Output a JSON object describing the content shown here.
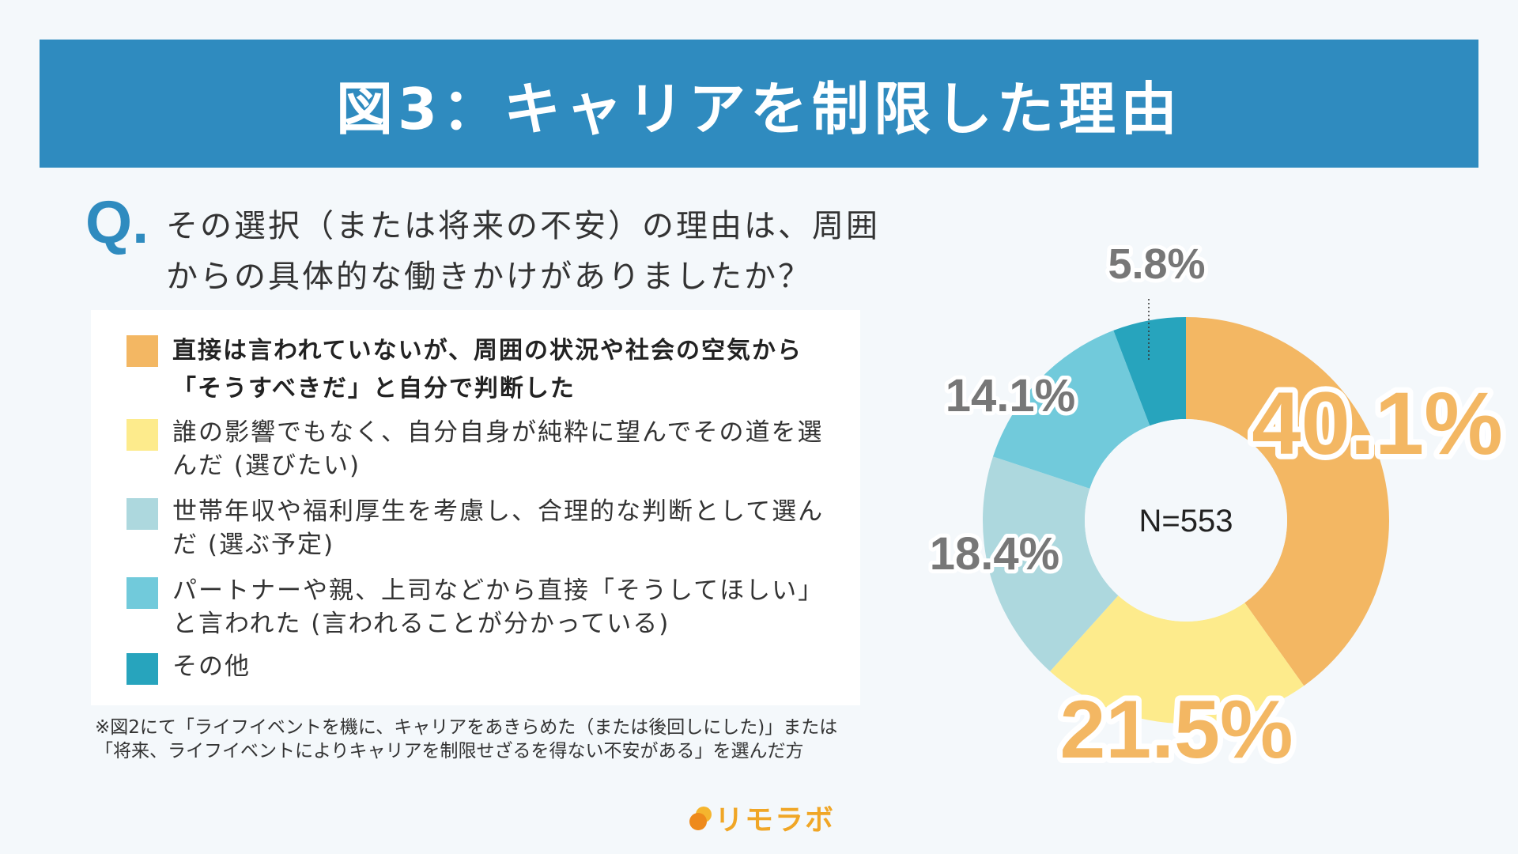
{
  "title": "図3：キャリアを制限した理由",
  "question": {
    "mark": "Q.",
    "line1": "その選択（または将来の不安）の理由は、周囲",
    "line2": "からの具体的な働きかけがありましたか？"
  },
  "legend": [
    {
      "label": "直接は言われていないが、周囲の状況や社会の空気から「そうすべきだ」と自分で判断した",
      "color": "#f3b763"
    },
    {
      "label": "誰の影響でもなく、自分自身が純粋に望んでその道を選んだ (選びたい)",
      "color": "#fdeb8c"
    },
    {
      "label": "世帯年収や福利厚生を考慮し、合理的な判断として選んだ (選ぶ予定)",
      "color": "#add8de"
    },
    {
      "label": "パートナーや親、上司などから直接「そうしてほしい」と言われた (言われることが分かっている)",
      "color": "#71cadb"
    },
    {
      "label": "その他",
      "color": "#27a4bd"
    }
  ],
  "note": "※図2にて「ライフイベントを機に、キャリアをあきらめた（または後回しにした)」または「将来、ライフイベントによりキャリアを制限せざるを得ない不安がある」を選んだ方",
  "logo": "リモラボ",
  "chart_data": {
    "type": "pie",
    "donut": true,
    "center_label": "N=553",
    "categories": [
      "直接は言われていないが、周囲の状況や社会の空気から「そうすべきだ」と自分で判断した",
      "誰の影響でもなく、自分自身が純粋に望んでその道を選んだ (選びたい)",
      "世帯年収や福利厚生を考慮し、合理的な判断として選んだ (選ぶ予定)",
      "パートナーや親、上司などから直接「そうしてほしい」と言われた (言われることが分かっている)",
      "その他"
    ],
    "values": [
      40.1,
      21.5,
      18.4,
      14.1,
      5.8
    ],
    "labels": [
      "40.1%",
      "21.5%",
      "18.4%",
      "14.1%",
      "5.8%"
    ],
    "colors": [
      "#f3b763",
      "#fdeb8c",
      "#add8de",
      "#71cadb",
      "#27a4bd"
    ]
  }
}
